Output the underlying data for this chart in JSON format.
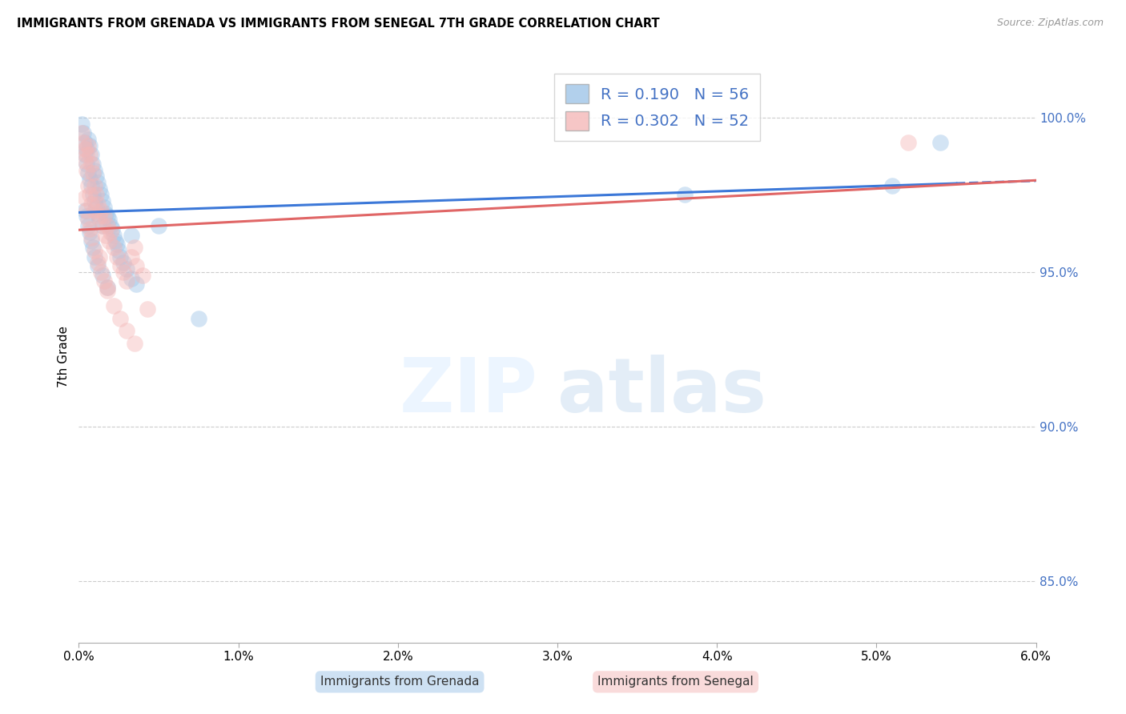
{
  "title": "IMMIGRANTS FROM GRENADA VS IMMIGRANTS FROM SENEGAL 7TH GRADE CORRELATION CHART",
  "source": "Source: ZipAtlas.com",
  "ylabel": "7th Grade",
  "x_min": 0.0,
  "x_max": 6.0,
  "y_min": 83.0,
  "y_max": 101.5,
  "y_ticks": [
    85.0,
    90.0,
    95.0,
    100.0
  ],
  "grenada_R": 0.19,
  "grenada_N": 56,
  "senegal_R": 0.302,
  "senegal_N": 52,
  "grenada_color": "#9fc5e8",
  "senegal_color": "#f4b8b8",
  "grenada_line_color": "#3c78d8",
  "senegal_line_color": "#e06666",
  "grenada_scatter_x": [
    0.02,
    0.03,
    0.04,
    0.04,
    0.05,
    0.05,
    0.06,
    0.06,
    0.07,
    0.07,
    0.08,
    0.08,
    0.09,
    0.09,
    0.1,
    0.1,
    0.11,
    0.11,
    0.12,
    0.12,
    0.13,
    0.13,
    0.14,
    0.15,
    0.15,
    0.16,
    0.17,
    0.18,
    0.19,
    0.2,
    0.21,
    0.22,
    0.23,
    0.24,
    0.25,
    0.26,
    0.28,
    0.3,
    0.33,
    0.36,
    0.04,
    0.05,
    0.06,
    0.07,
    0.08,
    0.09,
    0.1,
    0.12,
    0.15,
    0.18,
    0.33,
    0.5,
    0.75,
    3.8,
    5.1,
    5.4
  ],
  "grenada_scatter_y": [
    99.8,
    99.5,
    99.2,
    98.8,
    99.0,
    98.5,
    99.3,
    98.2,
    99.1,
    98.0,
    98.8,
    97.8,
    98.5,
    97.5,
    98.3,
    97.3,
    98.1,
    97.1,
    97.9,
    96.9,
    97.7,
    96.7,
    97.5,
    97.3,
    96.5,
    97.1,
    96.9,
    96.8,
    96.7,
    96.5,
    96.4,
    96.2,
    96.0,
    95.9,
    95.7,
    95.5,
    95.3,
    95.1,
    94.8,
    94.6,
    97.0,
    96.8,
    96.5,
    96.3,
    96.0,
    95.8,
    95.5,
    95.2,
    94.9,
    94.5,
    96.2,
    96.5,
    93.5,
    97.5,
    97.8,
    99.2
  ],
  "senegal_scatter_x": [
    0.02,
    0.03,
    0.04,
    0.04,
    0.05,
    0.05,
    0.06,
    0.06,
    0.07,
    0.07,
    0.08,
    0.08,
    0.09,
    0.1,
    0.1,
    0.11,
    0.12,
    0.13,
    0.14,
    0.15,
    0.16,
    0.17,
    0.18,
    0.19,
    0.2,
    0.22,
    0.24,
    0.26,
    0.28,
    0.3,
    0.33,
    0.36,
    0.4,
    0.04,
    0.05,
    0.06,
    0.07,
    0.08,
    0.1,
    0.12,
    0.14,
    0.16,
    0.18,
    0.22,
    0.26,
    0.3,
    0.35,
    0.13,
    0.18,
    0.35,
    0.43,
    5.2
  ],
  "senegal_scatter_y": [
    99.5,
    99.2,
    99.0,
    98.6,
    98.8,
    98.3,
    99.1,
    97.8,
    98.8,
    97.5,
    98.5,
    97.2,
    98.2,
    97.8,
    97.0,
    97.5,
    97.2,
    96.8,
    97.0,
    96.5,
    96.8,
    96.2,
    96.5,
    96.0,
    96.3,
    95.8,
    95.5,
    95.2,
    95.0,
    94.7,
    95.5,
    95.2,
    94.9,
    97.4,
    97.0,
    96.7,
    96.4,
    96.1,
    95.7,
    95.3,
    95.0,
    94.7,
    94.4,
    93.9,
    93.5,
    93.1,
    92.7,
    95.5,
    94.5,
    95.8,
    93.8,
    99.2
  ]
}
